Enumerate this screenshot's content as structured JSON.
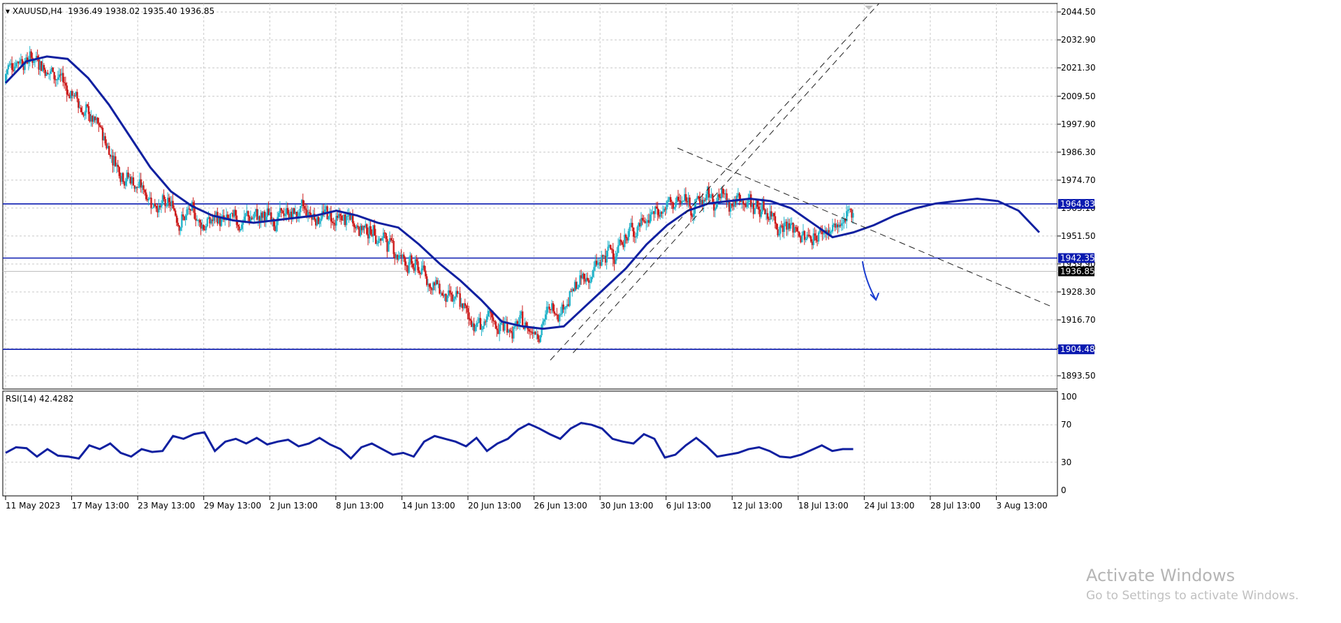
{
  "header": {
    "symbol": "XAUUSD,H4",
    "ohlc": "1936.49 1938.02 1935.40 1936.85"
  },
  "indicator_label": "RSI(14) 42.4282",
  "watermark": {
    "title": "Activate Windows",
    "subtitle": "Go to Settings to activate Windows."
  },
  "colors": {
    "bull": "#23b3c9",
    "bear": "#cc1a1a",
    "ma": "#1020a0",
    "hline": "#0a1ab0",
    "grid": "#c8c8c8",
    "text": "#000000"
  },
  "chart_data": [
    {
      "type": "candlestick",
      "symbol": "XAUUSD",
      "timeframe": "H4",
      "ylim": [
        1888,
        2048
      ],
      "y_ticks": [
        "2044.50",
        "2032.90",
        "2021.30",
        "2009.50",
        "1997.90",
        "1986.30",
        "1974.70",
        "1963.10",
        "1951.50",
        "1939.90",
        "1928.30",
        "1916.70",
        "1904.90",
        "1893.50"
      ],
      "x_ticks": [
        "11 May 2023",
        "17 May 13:00",
        "23 May 13:00",
        "29 May 13:00",
        "2 Jun 13:00",
        "8 Jun 13:00",
        "14 Jun 13:00",
        "20 Jun 13:00",
        "26 Jun 13:00",
        "30 Jun 13:00",
        "6 Jul 13:00",
        "12 Jul 13:00",
        "18 Jul 13:00",
        "24 Jul 13:00",
        "28 Jul 13:00",
        "3 Aug 13:00"
      ],
      "horizontal_levels": [
        {
          "value": 1964.83,
          "label": "1964.83"
        },
        {
          "value": 1942.35,
          "label": "1942.35"
        },
        {
          "value": 1904.48,
          "label": "1904.48"
        }
      ],
      "current_price": {
        "value": 1936.85,
        "label": "1936.85"
      },
      "moving_average": {
        "x": [
          0,
          2,
          4,
          6,
          8,
          10,
          12,
          14,
          16,
          18,
          20,
          22,
          24,
          26,
          28,
          30,
          32,
          34,
          36,
          38,
          40,
          42,
          44,
          46,
          48,
          50,
          52,
          54,
          56,
          58,
          60,
          62,
          64,
          66,
          68,
          70,
          72,
          74,
          76,
          78,
          80,
          82,
          84,
          86,
          88,
          90,
          92,
          94,
          96,
          98,
          100
        ],
        "y": [
          2015,
          2024,
          2026,
          2025,
          2017,
          2006,
          1993,
          1980,
          1970,
          1964,
          1960,
          1958,
          1957,
          1958,
          1959,
          1960,
          1962,
          1960,
          1957,
          1955,
          1948,
          1940,
          1933,
          1925,
          1916,
          1914,
          1913,
          1914,
          1922,
          1930,
          1938,
          1948,
          1956,
          1962,
          1965,
          1966,
          1967,
          1966,
          1963,
          1957,
          1951,
          1953,
          1956,
          1960,
          1963,
          1965,
          1966,
          1967,
          1966,
          1962,
          1953
        ]
      },
      "trendlines": [
        {
          "style": "dashed",
          "from": {
            "x": 52.7,
            "y": 1900
          },
          "to": {
            "x": 84.5,
            "y": 2048
          }
        },
        {
          "style": "dashed",
          "from": {
            "x": 54.9,
            "y": 1903
          },
          "to": {
            "x": 82.2,
            "y": 2033
          }
        },
        {
          "style": "dashed",
          "from": {
            "x": 65.0,
            "y": 1988
          },
          "to": {
            "x": 101.3,
            "y": 1922
          }
        }
      ],
      "arrow": {
        "from": {
          "x": 82.9,
          "y": 1941
        },
        "to": {
          "x": 84.2,
          "y": 1925
        }
      }
    },
    {
      "type": "line",
      "name": "RSI(14)",
      "value": 42.4282,
      "ylim": [
        0,
        100
      ],
      "y_ticks": [
        "100",
        "70",
        "30",
        "0"
      ],
      "x": [
        0,
        1,
        2,
        3,
        4,
        5,
        6,
        7,
        8,
        9,
        10,
        11,
        12,
        13,
        14,
        15,
        16,
        17,
        18,
        19,
        20,
        21,
        22,
        23,
        24,
        25,
        26,
        27,
        28,
        29,
        30,
        31,
        32,
        33,
        34,
        35,
        36,
        37,
        38,
        39,
        40,
        41,
        42,
        43,
        44,
        45,
        46,
        47,
        48,
        49,
        50,
        51,
        52,
        53,
        54,
        55,
        56,
        57,
        58,
        59,
        60,
        61,
        62,
        63,
        64,
        65,
        66,
        67,
        68,
        69,
        70,
        71,
        72,
        73,
        74,
        75,
        76,
        77,
        78,
        79,
        80,
        81
      ],
      "y": [
        40,
        46,
        45,
        36,
        44,
        37,
        36,
        34,
        48,
        44,
        50,
        40,
        36,
        44,
        41,
        42,
        58,
        55,
        60,
        62,
        42,
        52,
        55,
        50,
        56,
        49,
        52,
        54,
        47,
        50,
        56,
        49,
        44,
        34,
        46,
        50,
        44,
        38,
        40,
        36,
        52,
        58,
        55,
        52,
        47,
        56,
        42,
        50,
        55,
        65,
        71,
        66,
        60,
        55,
        66,
        72,
        70,
        66,
        55,
        52,
        50,
        60,
        55,
        35,
        38,
        48,
        56,
        47,
        36,
        38,
        40,
        44,
        46,
        42,
        36,
        35,
        38,
        43,
        48,
        42,
        44,
        44
      ]
    }
  ]
}
